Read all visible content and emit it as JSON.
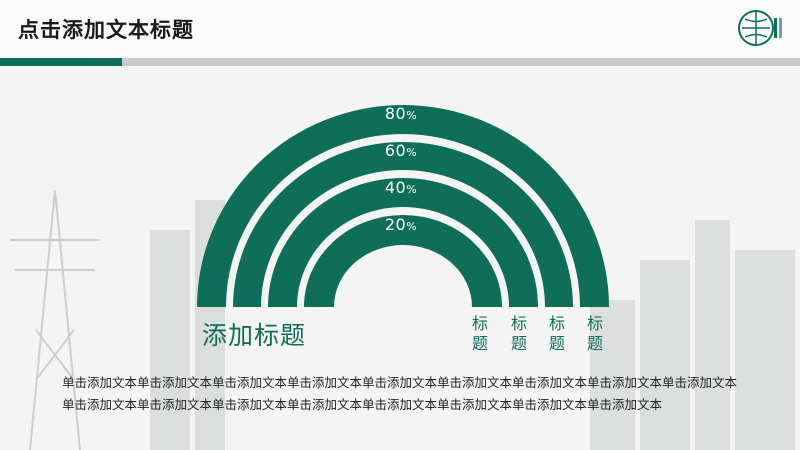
{
  "header": {
    "title": "点击添加文本标题"
  },
  "arc_rings": [
    {
      "label": "80",
      "unit": "%"
    },
    {
      "label": "60",
      "unit": "%"
    },
    {
      "label": "40",
      "unit": "%"
    },
    {
      "label": "20",
      "unit": "%"
    }
  ],
  "main_label": "添加标题",
  "column_labels": [
    "标\n题",
    "标\n题",
    "标\n题",
    "标\n题"
  ],
  "body_text": "单击添加文本单击添加文本单击添加文本单击添加文本单击添加文本单击添加文本单击添加文本单击添加文本单击添加文本单击添加文本单击添加文本单击添加文本单击添加文本单击添加文本单击添加文本单击添加文本单击添加文本",
  "colors": {
    "accent": "#0f6e5a",
    "divider": "#c8cbc9"
  },
  "icons": {
    "logo": "state-grid-logo-icon"
  }
}
